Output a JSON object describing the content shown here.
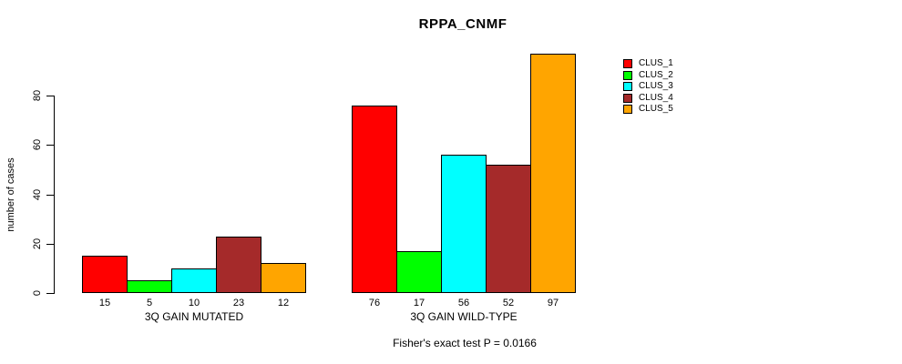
{
  "title": "RPPA_CNMF",
  "ylabel": "number of cases",
  "caption": "Fisher's exact test P = 0.0166",
  "chart_data": {
    "type": "bar",
    "title": "RPPA_CNMF",
    "xlabel": "",
    "ylabel": "number of cases",
    "ylim": [
      0,
      100
    ],
    "yticks": [
      0,
      20,
      40,
      60,
      80
    ],
    "grid": false,
    "legend_position": "right",
    "groups": [
      {
        "label": "3Q GAIN MUTATED",
        "values": [
          15,
          5,
          10,
          23,
          12
        ]
      },
      {
        "label": "3Q GAIN WILD-TYPE",
        "values": [
          76,
          17,
          56,
          52,
          97
        ]
      }
    ],
    "series": [
      {
        "name": "CLUS_1",
        "color": "#ff0000"
      },
      {
        "name": "CLUS_2",
        "color": "#00ff00"
      },
      {
        "name": "CLUS_3",
        "color": "#00ffff"
      },
      {
        "name": "CLUS_4",
        "color": "#a52a2a"
      },
      {
        "name": "CLUS_5",
        "color": "#ffa500"
      }
    ]
  }
}
